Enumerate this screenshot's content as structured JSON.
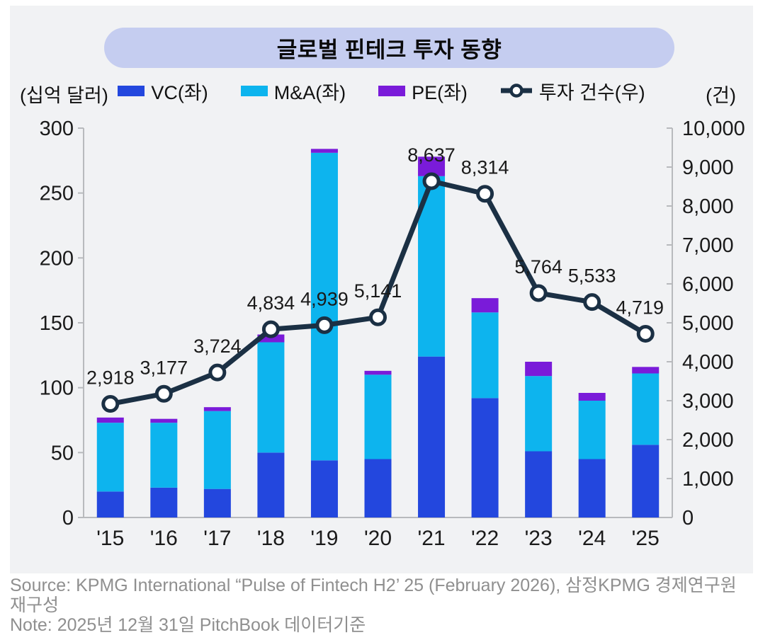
{
  "title": "글로벌 핀테크 투자 동향",
  "axes": {
    "left_unit": "(십억 달러)",
    "right_unit": "(건)"
  },
  "legend": [
    {
      "label": "VC(좌)",
      "color": "#2347de",
      "type": "bar"
    },
    {
      "label": "M&A(좌)",
      "color": "#0db4ee",
      "type": "bar"
    },
    {
      "label": "PE(좌)",
      "color": "#7a1bd9",
      "type": "bar"
    },
    {
      "label": "투자 건수(우)",
      "color": "#1b3044",
      "type": "line"
    }
  ],
  "chart_data": {
    "type": "bar",
    "subtype": "stacked-bar-with-line",
    "title": "글로벌 핀테크 투자 동향",
    "categories": [
      "'15",
      "'16",
      "'17",
      "'18",
      "'19",
      "'20",
      "'21",
      "'22",
      "'23",
      "'24",
      "'25"
    ],
    "series": [
      {
        "name": "VC(좌)",
        "type": "bar",
        "axis": "left",
        "color": "#2347de",
        "values": [
          20,
          23,
          22,
          50,
          44,
          45,
          124,
          92,
          51,
          45,
          56
        ]
      },
      {
        "name": "M&A(좌)",
        "type": "bar",
        "axis": "left",
        "color": "#0db4ee",
        "values": [
          53,
          50,
          60,
          85,
          237,
          65,
          139,
          66,
          58,
          45,
          55
        ]
      },
      {
        "name": "PE(좌)",
        "type": "bar",
        "axis": "left",
        "color": "#7a1bd9",
        "values": [
          4,
          3,
          3,
          6,
          3,
          3,
          15,
          11,
          11,
          6,
          5
        ]
      },
      {
        "name": "투자 건수(우)",
        "type": "line",
        "axis": "right",
        "color": "#1b3044",
        "values": [
          2918,
          3177,
          3724,
          4834,
          4939,
          5141,
          8637,
          8314,
          5764,
          5533,
          4719
        ],
        "data_labels": [
          "2,918",
          "3,177",
          "3,724",
          "4,834",
          "4,939",
          "5,141",
          "8,637",
          "8,314",
          "5,764",
          "5,533",
          "4,719"
        ]
      }
    ],
    "left_axis": {
      "label": "(십억 달러)",
      "ylim": [
        0,
        300
      ],
      "tick_step": 50,
      "tick_labels": [
        "0",
        "50",
        "100",
        "150",
        "200",
        "250",
        "300"
      ]
    },
    "right_axis": {
      "label": "(건)",
      "ylim": [
        0,
        10000
      ],
      "tick_step": 1000,
      "tick_labels": [
        "0",
        "1,000",
        "2,000",
        "3,000",
        "4,000",
        "5,000",
        "6,000",
        "7,000",
        "8,000",
        "9,000",
        "10,000"
      ]
    },
    "grid": false,
    "legend_position": "top",
    "marker_style": "open-circle"
  },
  "footer": {
    "source": "Source: KPMG International “Pulse of Fintech H2’ 25 (February 2026), 삼정KPMG 경제연구원 재구성",
    "note": "Note: 2025년 12월 31일 PitchBook 데이터기준"
  },
  "colors": {
    "card_bg": "#f1f2f4",
    "title_pill_bg": "#c5cdf0",
    "axis_line": "#b8babd",
    "text": "#1a1a1a",
    "footer_text": "#8f8f8f"
  }
}
